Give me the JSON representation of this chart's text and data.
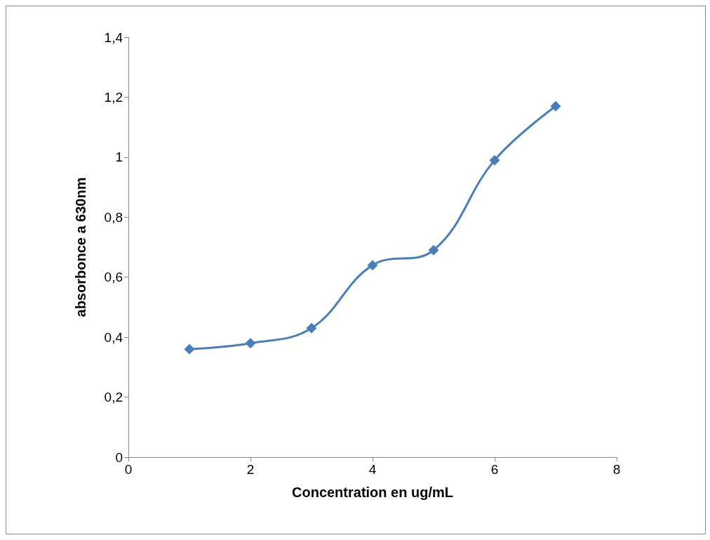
{
  "chart_data": {
    "type": "line",
    "xlabel": "Concentration en ug/mL",
    "ylabel": "absorbonce a 630nm",
    "x": [
      1,
      2,
      3,
      4,
      5,
      6,
      7
    ],
    "series": [
      {
        "color": "#4a7ebb",
        "values": [
          0.36,
          0.38,
          0.43,
          0.64,
          0.69,
          0.99,
          1.17
        ]
      }
    ],
    "xlim": [
      0,
      8
    ],
    "xticks": [
      0,
      2,
      4,
      6,
      8
    ],
    "ylim": [
      0,
      1.4
    ],
    "yticks": [
      0,
      {
        "value": 0.2,
        "label": "0,2"
      },
      {
        "value": 0.4,
        "label": "0,4"
      },
      {
        "value": 0.6,
        "label": "0,6"
      },
      {
        "value": 0.8,
        "label": "0,8"
      },
      1,
      {
        "value": 1.2,
        "label": "1,2"
      },
      {
        "value": 1.4,
        "label": "1,4"
      }
    ],
    "grid": false,
    "marker": "diamond",
    "line_style": "solid"
  }
}
